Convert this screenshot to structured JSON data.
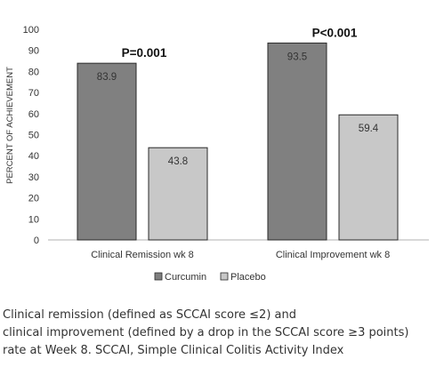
{
  "chart_data": {
    "type": "bar",
    "categories": [
      "Clinical Remission wk 8",
      "Clinical Improvement wk 8"
    ],
    "series": [
      {
        "name": "Curcumin",
        "values": [
          83.9,
          93.5
        ],
        "color": "#808080"
      },
      {
        "name": "Placebo",
        "values": [
          43.8,
          59.4
        ],
        "color": "#c8c8c8"
      }
    ],
    "data_labels": [
      [
        "83.9",
        "43.8"
      ],
      [
        "93.5",
        "59.4"
      ]
    ],
    "annotations": [
      "P=0.001",
      "P<0.001"
    ],
    "ylabel": "PERCENT OF ACHIEVEMENT",
    "ylim": [
      0,
      100
    ],
    "yticks": [
      0,
      10,
      20,
      30,
      40,
      50,
      60,
      70,
      80,
      90,
      100
    ],
    "grid": false,
    "legend": "bottom-center"
  },
  "caption": {
    "line1": "Clinical remission (defined as SCCAI score ≤2) and",
    "line2": "clinical improvement (defined by a drop in the SCCAI score ≥3 points)",
    "line3": "rate at Week 8. SCCAI, Simple Clinical Colitis Activity Index"
  }
}
